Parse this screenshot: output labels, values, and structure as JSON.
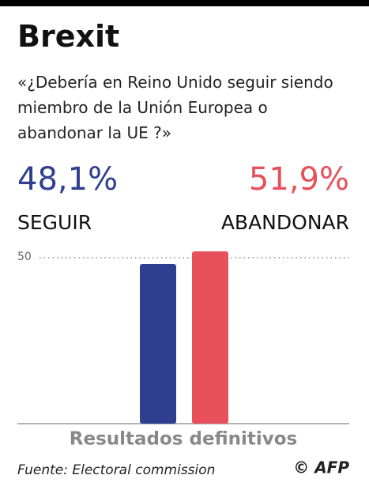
{
  "chart_data": {
    "type": "bar",
    "title": "Brexit",
    "subtitle": "«¿Debería en Reino Unido seguir siendo miembro de la Unión Europea o abandonar la UE ?»",
    "categories": [
      "SEGUIR",
      "ABANDONAR"
    ],
    "values": [
      48.1,
      51.9
    ],
    "value_labels": [
      "48,1%",
      "51,9%"
    ],
    "colors": [
      "#2e3f8f",
      "#e8505b"
    ],
    "ylim": [
      0,
      55
    ],
    "yticks": [
      50
    ],
    "grid": true,
    "note": "Resultados definitivos",
    "source": "Fuente: Electoral commission",
    "credit": "© AFP"
  }
}
